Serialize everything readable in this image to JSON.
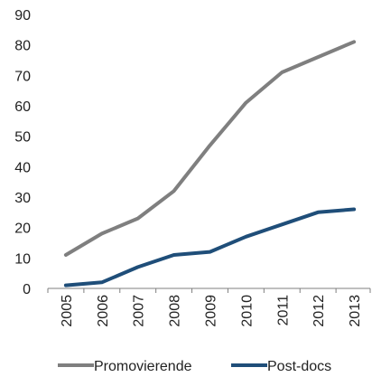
{
  "chart_data": {
    "type": "line",
    "x": [
      "2005",
      "2006",
      "2007",
      "2008",
      "2009",
      "2010",
      "2011",
      "2012",
      "2013"
    ],
    "series": [
      {
        "name": "Promovierende",
        "values": [
          11,
          18,
          23,
          32,
          47,
          61,
          71,
          76,
          81
        ],
        "color": "#7f7f7f"
      },
      {
        "name": "Post-docs",
        "values": [
          1,
          2,
          7,
          11,
          12,
          17,
          21,
          25,
          26
        ],
        "color": "#1f4e79"
      }
    ],
    "title": "",
    "xlabel": "",
    "ylabel": "",
    "ylim": [
      0,
      90
    ],
    "yticks": [
      0,
      10,
      20,
      30,
      40,
      50,
      60,
      70,
      80,
      90
    ],
    "grid": false,
    "legend": "bottom"
  }
}
